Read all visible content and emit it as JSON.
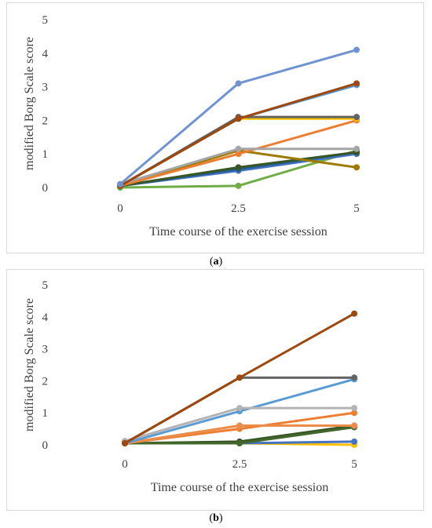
{
  "chart_data": [
    {
      "type": "line",
      "panel_label": "a",
      "title": "",
      "xlabel": "Time course of the exercise session",
      "ylabel": "modified Borg Scale score",
      "x": [
        0,
        2.5,
        5
      ],
      "x_tick_labels": [
        "0",
        "2.5",
        "5"
      ],
      "y_ticks": [
        0,
        1,
        2,
        3,
        4,
        5
      ],
      "ylim": [
        0,
        5
      ],
      "grid": false,
      "legend": "none",
      "series": [
        {
          "color": "#70ad47",
          "values": [
            0,
            0.05,
            1.1
          ]
        },
        {
          "color": "#4472c4",
          "values": [
            0.05,
            0.5,
            1.0
          ]
        },
        {
          "color": "#255e91",
          "values": [
            0.05,
            0.55,
            1.05
          ]
        },
        {
          "color": "#375623",
          "values": [
            0.05,
            0.6,
            1.05
          ]
        },
        {
          "color": "#9e7b00",
          "values": [
            0.05,
            1.1,
            0.6
          ]
        },
        {
          "color": "#ed7d31",
          "values": [
            0.05,
            1.0,
            2.0
          ]
        },
        {
          "color": "#a5a5a5",
          "values": [
            0.1,
            1.15,
            1.15
          ]
        },
        {
          "color": "#ffc000",
          "values": [
            0.05,
            2.05,
            2.05
          ]
        },
        {
          "color": "#5b9bd5",
          "values": [
            0.05,
            2.05,
            3.05
          ]
        },
        {
          "color": "#636363",
          "values": [
            0.05,
            2.1,
            2.1
          ]
        },
        {
          "color": "#9e480e",
          "values": [
            0.05,
            2.05,
            3.1
          ]
        },
        {
          "color": "#6e93d0",
          "values": [
            0.1,
            3.1,
            4.1
          ]
        }
      ]
    },
    {
      "type": "line",
      "panel_label": "b",
      "title": "",
      "xlabel": "Time course of the exercise session",
      "ylabel": "modified Borg Scale score",
      "x": [
        0,
        2.5,
        5
      ],
      "x_tick_labels": [
        "0",
        "2.5",
        "5"
      ],
      "y_ticks": [
        0,
        1,
        2,
        3,
        4,
        5
      ],
      "ylim": [
        0,
        5
      ],
      "grid": false,
      "legend": "none",
      "series": [
        {
          "color": "#ffc000",
          "values": [
            0.05,
            0.05,
            0.0
          ]
        },
        {
          "color": "#4472c4",
          "values": [
            0.05,
            0.05,
            0.1
          ]
        },
        {
          "color": "#375623",
          "values": [
            0.05,
            0.1,
            0.6
          ]
        },
        {
          "color": "#43682b",
          "values": [
            0.05,
            0.05,
            0.55
          ]
        },
        {
          "color": "#ed7d31",
          "values": [
            0.05,
            0.5,
            1.0
          ]
        },
        {
          "color": "#f4b183",
          "values": [
            0.05,
            0.6,
            0.6
          ]
        },
        {
          "color": "#eb8c4a",
          "values": [
            0.05,
            0.6,
            0.6
          ]
        },
        {
          "color": "#5b9bd5",
          "values": [
            0.05,
            1.05,
            2.05
          ]
        },
        {
          "color": "#b4b4b4",
          "values": [
            0.12,
            1.15,
            1.15
          ]
        },
        {
          "color": "#636363",
          "values": [
            0.05,
            2.1,
            2.1
          ]
        },
        {
          "color": "#9e480e",
          "values": [
            0.05,
            2.1,
            4.1
          ]
        }
      ]
    }
  ]
}
